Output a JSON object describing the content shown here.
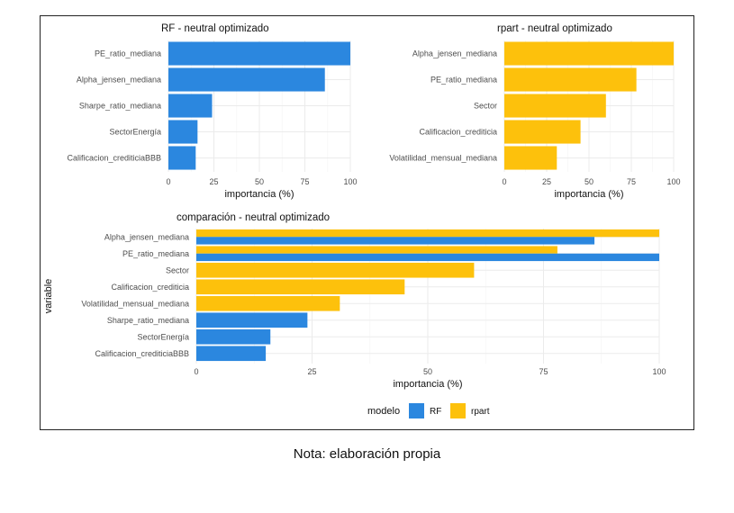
{
  "caption": "Nota: elaboración propia",
  "colors": {
    "RF": "#2b87df",
    "rpart": "#fdc10c",
    "grid": "#ebebeb"
  },
  "chart_data": [
    {
      "type": "bar",
      "orientation": "horizontal",
      "title": "RF - neutral optimizado",
      "xlabel": "importancia (%)",
      "ylabel": "",
      "xlim": [
        0,
        100
      ],
      "ticks": [
        "0",
        "25",
        "50",
        "75",
        "100"
      ],
      "grid": true,
      "categories": [
        "PE_ratio_mediana",
        "Alpha_jensen_mediana",
        "Sharpe_ratio_mediana",
        "SectorEnergía",
        "Calificacion_crediticiaBBB"
      ],
      "values": [
        100,
        86,
        24,
        16,
        15
      ],
      "color": "RF"
    },
    {
      "type": "bar",
      "orientation": "horizontal",
      "title": "rpart - neutral optimizado",
      "xlabel": "importancia (%)",
      "ylabel": "",
      "xlim": [
        0,
        100
      ],
      "ticks": [
        "0",
        "25",
        "50",
        "75",
        "100"
      ],
      "grid": true,
      "categories": [
        "Alpha_jensen_mediana",
        "PE_ratio_mediana",
        "Sector",
        "Calificacion_crediticia",
        "Volatilidad_mensual_mediana"
      ],
      "values": [
        100,
        78,
        60,
        45,
        31
      ],
      "color": "rpart"
    },
    {
      "type": "bar",
      "orientation": "horizontal",
      "title": "comparación - neutral optimizado",
      "xlabel": "importancia (%)",
      "ylabel": "variable",
      "xlim": [
        0,
        100
      ],
      "ticks": [
        "0",
        "25",
        "50",
        "75",
        "100"
      ],
      "grid": true,
      "legend": {
        "title": "modelo",
        "position": "bottom",
        "entries": [
          "RF",
          "rpart"
        ]
      },
      "categories": [
        "Alpha_jensen_mediana",
        "PE_ratio_mediana",
        "Sector",
        "Calificacion_crediticia",
        "Volatilidad_mensual_mediana",
        "Sharpe_ratio_mediana",
        "SectorEnergía",
        "Calificacion_crediticiaBBB"
      ],
      "series": [
        {
          "name": "rpart",
          "values": [
            100,
            78,
            60,
            45,
            31,
            null,
            null,
            null
          ]
        },
        {
          "name": "RF",
          "values": [
            86,
            100,
            null,
            null,
            null,
            24,
            16,
            15
          ]
        }
      ]
    }
  ]
}
